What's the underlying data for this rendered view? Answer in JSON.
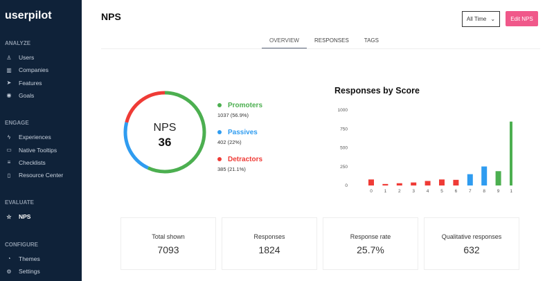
{
  "sidebar": {
    "logo": "userpilot",
    "sections": [
      {
        "title": "ANALYZE",
        "items": [
          {
            "label": "Users",
            "icon": "user-icon"
          },
          {
            "label": "Companies",
            "icon": "building-icon"
          },
          {
            "label": "Features",
            "icon": "send-icon"
          },
          {
            "label": "Goals",
            "icon": "target-icon"
          }
        ]
      },
      {
        "title": "ENGAGE",
        "items": [
          {
            "label": "Experiences",
            "icon": "lightning-icon"
          },
          {
            "label": "Native Tooltips",
            "icon": "message-icon"
          },
          {
            "label": "Checklists",
            "icon": "list-icon"
          },
          {
            "label": "Resource Center",
            "icon": "book-icon"
          }
        ]
      },
      {
        "title": "EVALUATE",
        "items": [
          {
            "label": "NPS",
            "icon": "star-icon",
            "active": true
          }
        ]
      },
      {
        "title": "CONFIGURE",
        "items": [
          {
            "label": "Themes",
            "icon": "palette-icon"
          },
          {
            "label": "Settings",
            "icon": "gear-icon"
          }
        ]
      }
    ]
  },
  "header": {
    "title": "NPS",
    "range": "All Time",
    "edit": "Edit NPS"
  },
  "tabs": [
    {
      "label": "OVERVIEW",
      "active": true
    },
    {
      "label": "RESPONSES"
    },
    {
      "label": "TAGS"
    }
  ],
  "nps": {
    "label": "NPS",
    "score": "36",
    "segments": [
      {
        "name": "Promoters",
        "detail": "1037 (56.9%)",
        "pct": 56.9,
        "color": "#4caf50"
      },
      {
        "name": "Passives",
        "detail": "402 (22%)",
        "pct": 22,
        "color": "#2f9cf0"
      },
      {
        "name": "Detractors",
        "detail": "385 (21.1%)",
        "pct": 21.1,
        "color": "#ef3b36"
      }
    ]
  },
  "chart_data": {
    "type": "bar",
    "title": "Responses by Score",
    "categories": [
      "0",
      "1",
      "2",
      "3",
      "4",
      "5",
      "6",
      "7",
      "8",
      "9",
      "10"
    ],
    "values": [
      80,
      20,
      30,
      40,
      60,
      80,
      75,
      150,
      252,
      190,
      847
    ],
    "colors": [
      "#ef3b36",
      "#ef3b36",
      "#ef3b36",
      "#ef3b36",
      "#ef3b36",
      "#ef3b36",
      "#ef3b36",
      "#2f9cf0",
      "#2f9cf0",
      "#4caf50",
      "#4caf50"
    ],
    "ylim": [
      0,
      1000
    ],
    "yticks": [
      "0",
      "250",
      "500",
      "750",
      "1000"
    ],
    "grid": false
  },
  "cards": [
    {
      "label": "Total shown",
      "value": "7093"
    },
    {
      "label": "Responses",
      "value": "1824"
    },
    {
      "label": "Response rate",
      "value": "25.7%"
    },
    {
      "label": "Qualitative responses",
      "value": "632"
    }
  ]
}
